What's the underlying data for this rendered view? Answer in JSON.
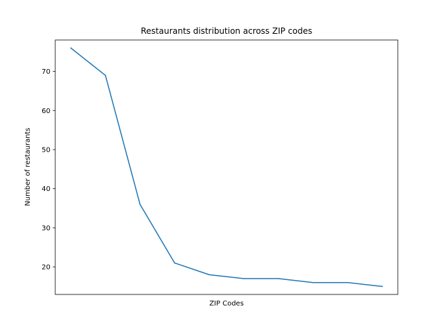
{
  "chart_data": {
    "type": "line",
    "title": "Restaurants distribution across ZIP codes",
    "xlabel": "ZIP Codes",
    "ylabel": "Number of restaurants",
    "x_tick_labels_visible": false,
    "x": [
      0,
      1,
      2,
      3,
      4,
      5,
      6,
      7,
      8,
      9
    ],
    "series": [
      {
        "values": [
          76,
          69,
          36,
          21,
          18,
          17,
          17,
          16,
          16,
          15
        ]
      }
    ],
    "yticks": [
      20,
      30,
      40,
      50,
      60,
      70
    ],
    "ylim": [
      12.95,
      78.05
    ],
    "xlim": [
      -0.45,
      9.45
    ],
    "grid": false,
    "colors": {
      "line": "#1f77b4",
      "axes": "#000000",
      "background": "#ffffff"
    }
  }
}
